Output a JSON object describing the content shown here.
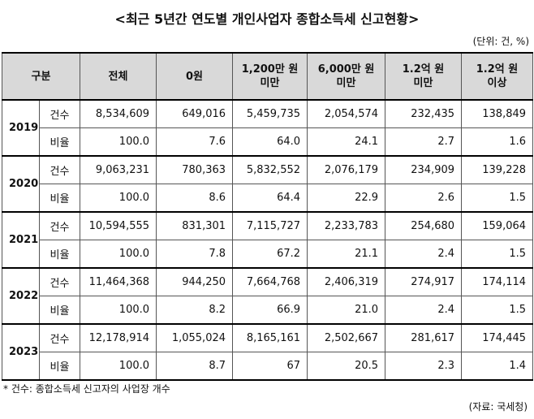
{
  "title": "<최근 5년간 연도별 개인사업자 종합소득세 신고현황>",
  "unit": "(단위: 건, %)",
  "table": {
    "header": [
      "구분",
      "전체",
      "0원",
      "1,200만 원\n미만",
      "6,000만 원\n미만",
      "1.2억 원\n미만",
      "1.2억 원\n이상"
    ],
    "years": [
      {
        "year": "2019",
        "rows": [
          {
            "label": "건수",
            "cells": [
              "8,534,609",
              "649,016",
              "5,459,735",
              "2,054,574",
              "232,435",
              "138,849"
            ]
          },
          {
            "label": "비율",
            "cells": [
              "100.0",
              "7.6",
              "64.0",
              "24.1",
              "2.7",
              "1.6"
            ]
          }
        ]
      },
      {
        "year": "2020",
        "rows": [
          {
            "label": "건수",
            "cells": [
              "9,063,231",
              "780,363",
              "5,832,552",
              "2,076,179",
              "234,909",
              "139,228"
            ]
          },
          {
            "label": "비율",
            "cells": [
              "100.0",
              "8.6",
              "64.4",
              "22.9",
              "2.6",
              "1.5"
            ]
          }
        ]
      },
      {
        "year": "2021",
        "rows": [
          {
            "label": "건수",
            "cells": [
              "10,594,555",
              "831,301",
              "7,115,727",
              "2,233,783",
              "254,680",
              "159,064"
            ]
          },
          {
            "label": "비율",
            "cells": [
              "100.0",
              "7.8",
              "67.2",
              "21.1",
              "2.4",
              "1.5"
            ]
          }
        ]
      },
      {
        "year": "2022",
        "rows": [
          {
            "label": "건수",
            "cells": [
              "11,464,368",
              "944,250",
              "7,664,768",
              "2,406,319",
              "274,917",
              "174,114"
            ]
          },
          {
            "label": "비율",
            "cells": [
              "100.0",
              "8.2",
              "66.9",
              "21.0",
              "2.4",
              "1.5"
            ]
          }
        ]
      },
      {
        "year": "2023",
        "rows": [
          {
            "label": "건수",
            "cells": [
              "12,178,914",
              "1,055,024",
              "8,165,161",
              "2,502,667",
              "281,617",
              "174,445"
            ]
          },
          {
            "label": "비율",
            "cells": [
              "100.0",
              "8.7",
              "67",
              "20.5",
              "2.3",
              "1.4"
            ]
          }
        ]
      }
    ]
  },
  "footnote": "* 건수: 종합소득세 신고자의 사업장 개수",
  "source": "(자료: 국세청)"
}
